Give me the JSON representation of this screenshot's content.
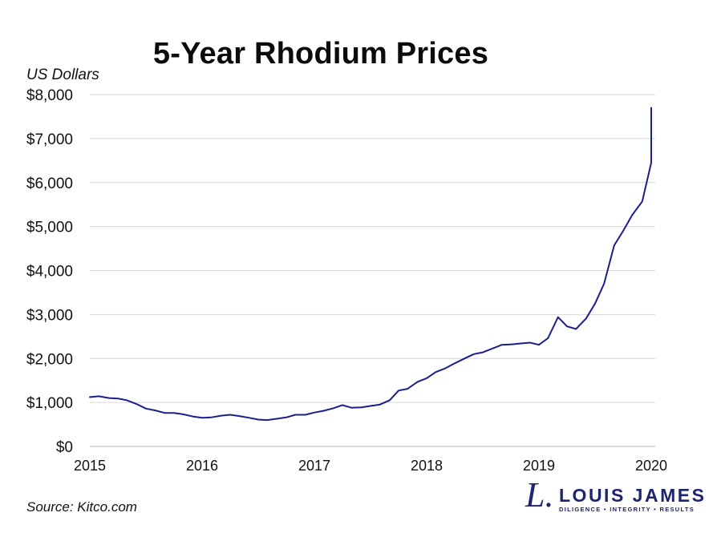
{
  "chart_data": {
    "type": "line",
    "title": "5-Year Rhodium Prices",
    "ylabel": "US Dollars",
    "xlabel": "",
    "ylim": [
      0,
      8000
    ],
    "xlim": [
      2015,
      2020
    ],
    "yticks": [
      0,
      1000,
      2000,
      3000,
      4000,
      5000,
      6000,
      7000,
      8000
    ],
    "ytick_labels": [
      "$0",
      "$1,000",
      "$2,000",
      "$3,000",
      "$4,000",
      "$5,000",
      "$6,000",
      "$7,000",
      "$8,000"
    ],
    "xticks": [
      2015,
      2016,
      2017,
      2018,
      2019,
      2020
    ],
    "xtick_labels": [
      "2015",
      "2016",
      "2017",
      "2018",
      "2019",
      "2020"
    ],
    "grid": true,
    "series": [
      {
        "name": "Rhodium",
        "color": "#1a1f8c",
        "x": [
          2015.0,
          2015.08,
          2015.17,
          2015.25,
          2015.33,
          2015.42,
          2015.5,
          2015.58,
          2015.67,
          2015.75,
          2015.83,
          2015.92,
          2016.0,
          2016.08,
          2016.17,
          2016.25,
          2016.33,
          2016.42,
          2016.5,
          2016.58,
          2016.67,
          2016.75,
          2016.83,
          2016.92,
          2017.0,
          2017.08,
          2017.17,
          2017.25,
          2017.33,
          2017.42,
          2017.5,
          2017.58,
          2017.67,
          2017.75,
          2017.83,
          2017.92,
          2018.0,
          2018.08,
          2018.17,
          2018.25,
          2018.33,
          2018.42,
          2018.5,
          2018.58,
          2018.67,
          2018.75,
          2018.83,
          2018.92,
          2019.0,
          2019.08,
          2019.17,
          2019.25,
          2019.33,
          2019.42,
          2019.5,
          2019.58,
          2019.67,
          2019.75,
          2019.83,
          2019.92,
          2020.0,
          2020.0
        ],
        "values": [
          1120,
          1140,
          1100,
          1090,
          1050,
          960,
          860,
          820,
          760,
          760,
          730,
          680,
          650,
          660,
          700,
          720,
          690,
          650,
          610,
          600,
          630,
          660,
          720,
          720,
          770,
          810,
          870,
          940,
          880,
          890,
          920,
          950,
          1050,
          1270,
          1310,
          1470,
          1550,
          1690,
          1780,
          1890,
          1990,
          2100,
          2140,
          2220,
          2310,
          2320,
          2340,
          2360,
          2310,
          2460,
          2940,
          2730,
          2670,
          2910,
          3250,
          3700,
          4570,
          4900,
          5260,
          5570,
          6450,
          7700
        ]
      }
    ],
    "source": "Source: Kitco.com"
  },
  "logo": {
    "mark": "L.",
    "name": "LOUIS JAMES",
    "tagline": "DILIGENCE  •  INTEGRITY  •  RESULTS",
    "color": "#1d2470"
  }
}
